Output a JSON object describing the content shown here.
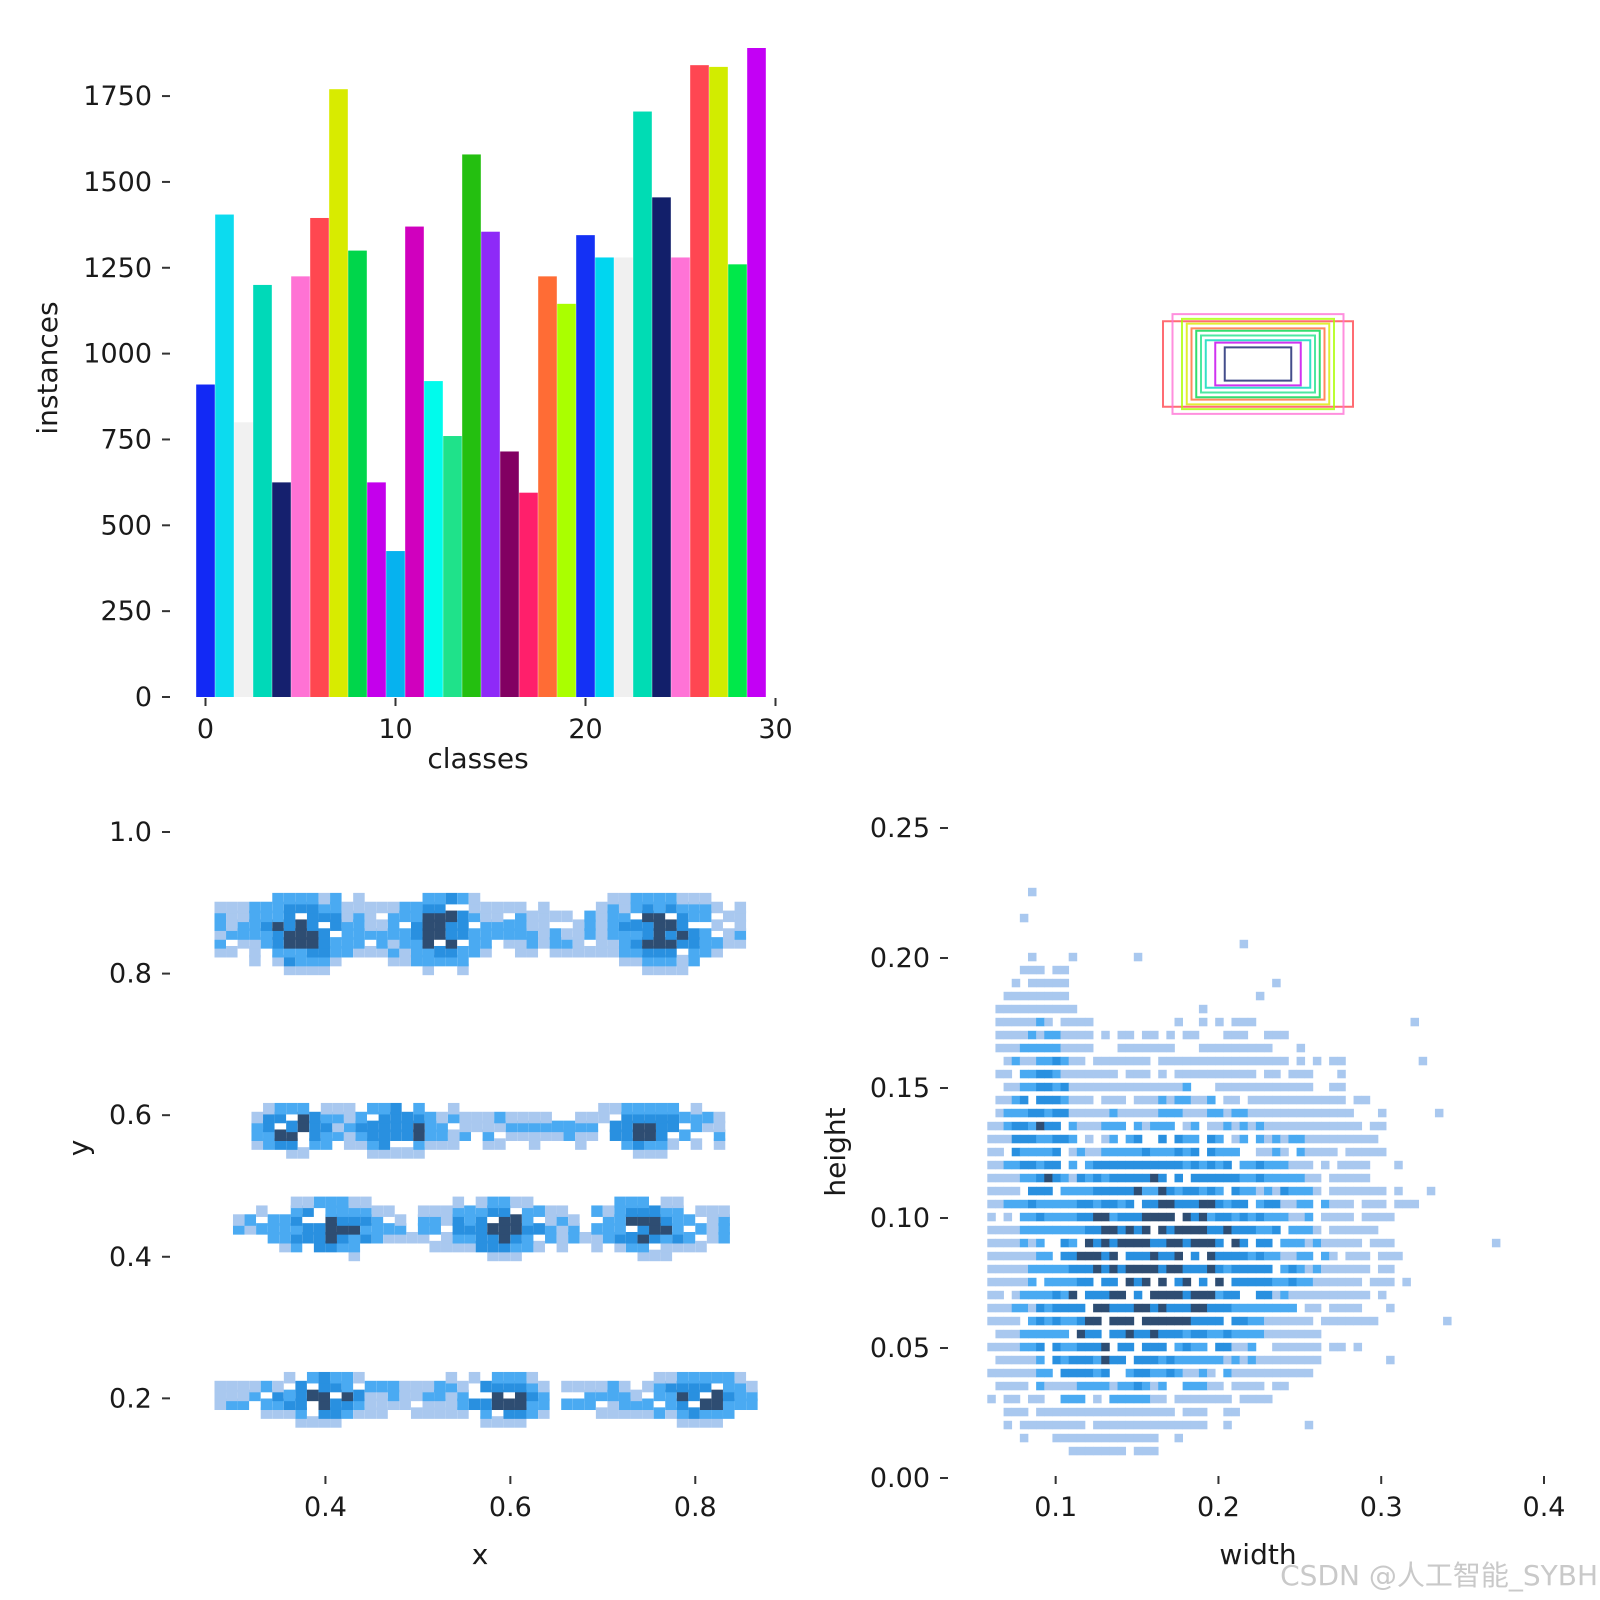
{
  "chart_data": [
    {
      "type": "bar",
      "xlabel": "classes",
      "ylabel": "instances",
      "xlim": [
        -0.5,
        29.5
      ],
      "ylim": [
        0,
        1890
      ],
      "xticks": [
        0,
        10,
        20,
        30
      ],
      "yticks": [
        0,
        250,
        500,
        750,
        1000,
        1250,
        1500,
        1750
      ],
      "categories": [
        0,
        1,
        2,
        3,
        4,
        5,
        6,
        7,
        8,
        9,
        10,
        11,
        12,
        13,
        14,
        15,
        16,
        17,
        18,
        19,
        20,
        21,
        22,
        23,
        24,
        25,
        26,
        27,
        28,
        29
      ],
      "values": [
        910,
        1405,
        800,
        1200,
        625,
        1225,
        1395,
        1770,
        1300,
        625,
        425,
        1370,
        920,
        760,
        1580,
        1355,
        715,
        595,
        1225,
        1145,
        1345,
        1280,
        1280,
        1705,
        1455,
        1280,
        1840,
        1835,
        1260,
        1890
      ],
      "colors": [
        "#1229f5",
        "#0cdbef",
        "#f1f1f1",
        "#00d9b8",
        "#15206e",
        "#ff72d4",
        "#ff4750",
        "#d8eb00",
        "#00d64b",
        "#c400ec",
        "#06b2ef",
        "#d000be",
        "#00fbec",
        "#1fe28a",
        "#24bf10",
        "#8e2af7",
        "#820062",
        "#ff1f6b",
        "#ff6c35",
        "#aaff00",
        "#1431f5",
        "#00d6f0",
        "#f0f0f0",
        "#00dcb4",
        "#121f6a",
        "#ff73d6",
        "#ff4652",
        "#d2ec00",
        "#00e84a",
        "#c300f5"
      ]
    },
    {
      "type": "scatter",
      "description_free": true,
      "boxes": [
        {
          "w": 0.2,
          "h": 0.09,
          "color": "#ff4750"
        },
        {
          "w": 0.18,
          "h": 0.105,
          "color": "#ff73d6"
        },
        {
          "w": 0.15,
          "h": 0.085,
          "color": "#d8eb00"
        },
        {
          "w": 0.13,
          "h": 0.07,
          "color": "#00d64b"
        },
        {
          "w": 0.12,
          "h": 0.06,
          "color": "#1fe28a"
        },
        {
          "w": 0.11,
          "h": 0.05,
          "color": "#00d9b8"
        },
        {
          "w": 0.09,
          "h": 0.045,
          "color": "#c400ec"
        },
        {
          "w": 0.07,
          "h": 0.035,
          "color": "#15206e"
        },
        {
          "w": 0.14,
          "h": 0.075,
          "color": "#ff6c35"
        },
        {
          "w": 0.16,
          "h": 0.095,
          "color": "#aaff00"
        }
      ]
    },
    {
      "type": "heatmap",
      "xlabel": "x",
      "ylabel": "y",
      "xlim": [
        0.26,
        0.87
      ],
      "ylim": [
        0.12,
        1.0
      ],
      "xticks": [
        "0.4",
        "0.6",
        "0.8"
      ],
      "yticks": [
        "0.2",
        "0.4",
        "0.6",
        "0.8",
        "1.0"
      ],
      "bands": [
        {
          "y": 0.87,
          "spread": 0.035,
          "x0": 0.28,
          "x1": 0.85,
          "hot": [
            0.37,
            0.52,
            0.76
          ]
        },
        {
          "y": 0.59,
          "spread": 0.022,
          "x0": 0.32,
          "x1": 0.82,
          "hot": [
            0.36,
            0.47,
            0.74
          ]
        },
        {
          "y": 0.45,
          "spread": 0.025,
          "x0": 0.3,
          "x1": 0.83,
          "hot": [
            0.4,
            0.58,
            0.74
          ]
        },
        {
          "y": 0.21,
          "spread": 0.022,
          "x0": 0.28,
          "x1": 0.86,
          "hot": [
            0.39,
            0.59,
            0.8
          ]
        }
      ]
    },
    {
      "type": "heatmap",
      "xlabel": "width",
      "ylabel": "height",
      "xlim": [
        0.04,
        0.4
      ],
      "ylim": [
        0.0,
        0.25
      ],
      "xticks": [
        "0.1",
        "0.2",
        "0.3",
        "0.4"
      ],
      "yticks": [
        "0.00",
        "0.05",
        "0.10",
        "0.15",
        "0.20",
        "0.25"
      ],
      "peak": {
        "w": 0.145,
        "h": 0.075
      }
    }
  ],
  "watermark": "CSDN @人工智能_SYBH",
  "colors": {
    "light": "#a8c8ee",
    "mid": "#3aa3ee",
    "dark": "#2f4f74"
  }
}
